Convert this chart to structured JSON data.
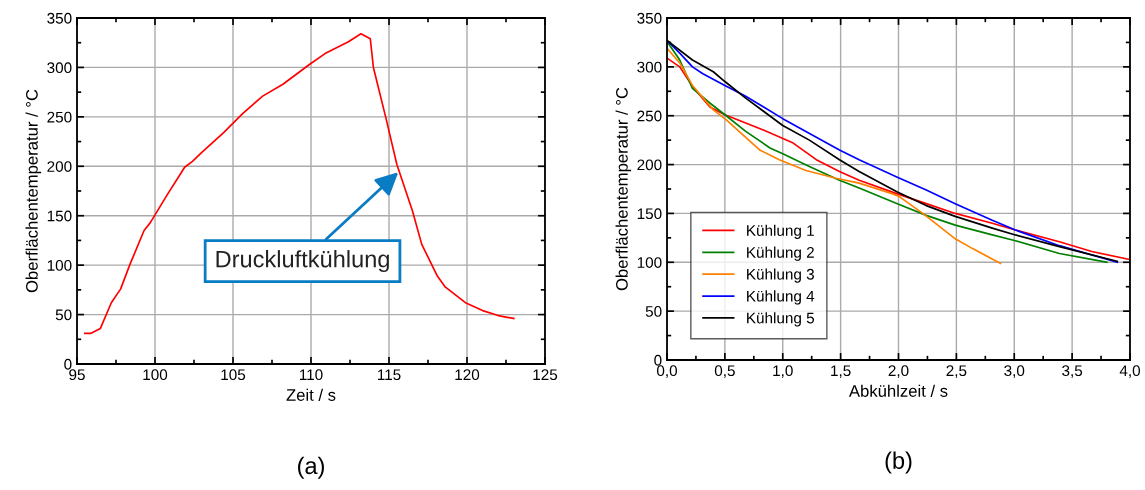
{
  "chart_data": [
    {
      "type": "line",
      "xlabel": "Zeit / s",
      "ylabel": "Oberflächentemperatur / °C",
      "x": [
        95.5,
        95.9,
        96.5,
        97.2,
        97.8,
        98.4,
        99.3,
        99.7,
        100.7,
        101.9,
        102.4,
        103.0,
        104.4,
        105.6,
        106.9,
        108.2,
        109.9,
        110.9,
        112.4,
        113.2,
        113.8,
        114.0,
        114.8,
        115.5,
        116.5,
        117.1,
        118.1,
        118.6,
        119.9,
        121.0,
        122.0,
        123.0
      ],
      "series": [
        {
          "color": "#ff0000",
          "values": [
            31,
            31,
            36,
            62,
            76,
            101,
            135,
            143,
            169,
            199,
            205,
            214,
            234,
            253,
            271,
            283,
            303,
            314,
            326,
            334,
            329,
            300,
            249,
            202,
            155,
            121,
            89,
            78,
            62,
            54,
            49,
            46
          ]
        }
      ],
      "xlim": [
        95,
        125
      ],
      "xticks": [
        95,
        100,
        105,
        110,
        115,
        120,
        125
      ],
      "ylim": [
        0,
        350
      ],
      "yticks": [
        0,
        50,
        100,
        150,
        200,
        250,
        300,
        350
      ],
      "grid": true,
      "legend": false,
      "annotations": [
        {
          "text": "Druckluftkühlung",
          "x": 115.6,
          "y": 194
        },
        "(a)"
      ]
    },
    {
      "type": "line",
      "xlabel": "Abkühlzeit / s",
      "ylabel": "Oberflächentemperatur / °C",
      "series": [
        {
          "name": "Kühlung 1",
          "color": "#ff0000",
          "x": [
            0,
            0.11,
            0.22,
            0.37,
            0.5,
            0.8,
            1.09,
            1.29,
            1.49,
            1.66,
            1.99,
            2.24,
            2.49,
            2.81,
            3.01,
            3.39,
            3.67,
            3.99
          ],
          "values": [
            309,
            300,
            280,
            259,
            251,
            237,
            222,
            205,
            193,
            184,
            170,
            160,
            150,
            140,
            133,
            121,
            111,
            103
          ]
        },
        {
          "name": "Kühlung 2",
          "color": "#008000",
          "x": [
            0,
            0.11,
            0.22,
            0.37,
            0.5,
            0.68,
            0.89,
            1.0,
            1.23,
            1.49,
            1.66,
            1.99,
            2.24,
            2.49,
            2.81,
            3.01,
            3.39,
            3.8
          ],
          "values": [
            326,
            307,
            278,
            263,
            251,
            234,
            217,
            211,
            198,
            184,
            176,
            160,
            148,
            138,
            128,
            122,
            109,
            100
          ]
        },
        {
          "name": "Kühlung 3",
          "color": "#ff8000",
          "x": [
            0,
            0.11,
            0.22,
            0.4,
            0.51,
            0.8,
            0.97,
            1.2,
            1.46,
            1.66,
            1.95,
            2.01,
            2.21,
            2.49,
            2.64,
            2.88
          ],
          "values": [
            319,
            304,
            281,
            256,
            246,
            215,
            205,
            194,
            186,
            181,
            170,
            167,
            150,
            124,
            114,
            99
          ]
        },
        {
          "name": "Kühlung 4",
          "color": "#0000ff",
          "x": [
            0,
            0.11,
            0.22,
            0.31,
            0.5,
            0.68,
            1.0,
            1.49,
            1.66,
            1.99,
            2.24,
            2.49,
            2.81,
            3.01,
            3.39,
            3.89
          ],
          "values": [
            327,
            314,
            300,
            293,
            281,
            270,
            247,
            215,
            205,
            187,
            174,
            160,
            143,
            133,
            117,
            100
          ]
        },
        {
          "name": "Kühlung 5",
          "color": "#000000",
          "x": [
            0,
            0.22,
            0.4,
            0.5,
            0.68,
            1.0,
            1.23,
            1.49,
            1.66,
            1.99,
            2.24,
            2.49,
            2.81,
            3.01,
            3.39,
            3.89
          ],
          "values": [
            327,
            307,
            295,
            285,
            268,
            240,
            225,
            205,
            193,
            172,
            158,
            147,
            135,
            128,
            116,
            101
          ]
        }
      ],
      "xlim": [
        0,
        4
      ],
      "xticks": [
        {
          "value": 0,
          "label": "0,0"
        },
        {
          "value": 0.5,
          "label": "0,5"
        },
        {
          "value": 1,
          "label": "1,0"
        },
        {
          "value": 1.5,
          "label": "1,5"
        },
        {
          "value": 2,
          "label": "2,0"
        },
        {
          "value": 2.5,
          "label": "2,5"
        },
        {
          "value": 3,
          "label": "3,0"
        },
        {
          "value": 3.5,
          "label": "3,5"
        },
        {
          "value": 4,
          "label": "4,0"
        }
      ],
      "ylim": [
        0,
        350
      ],
      "yticks": [
        0,
        50,
        100,
        150,
        200,
        250,
        300,
        350
      ],
      "grid": true,
      "legend": "bottom left",
      "annotations": [
        "(b)"
      ]
    }
  ]
}
